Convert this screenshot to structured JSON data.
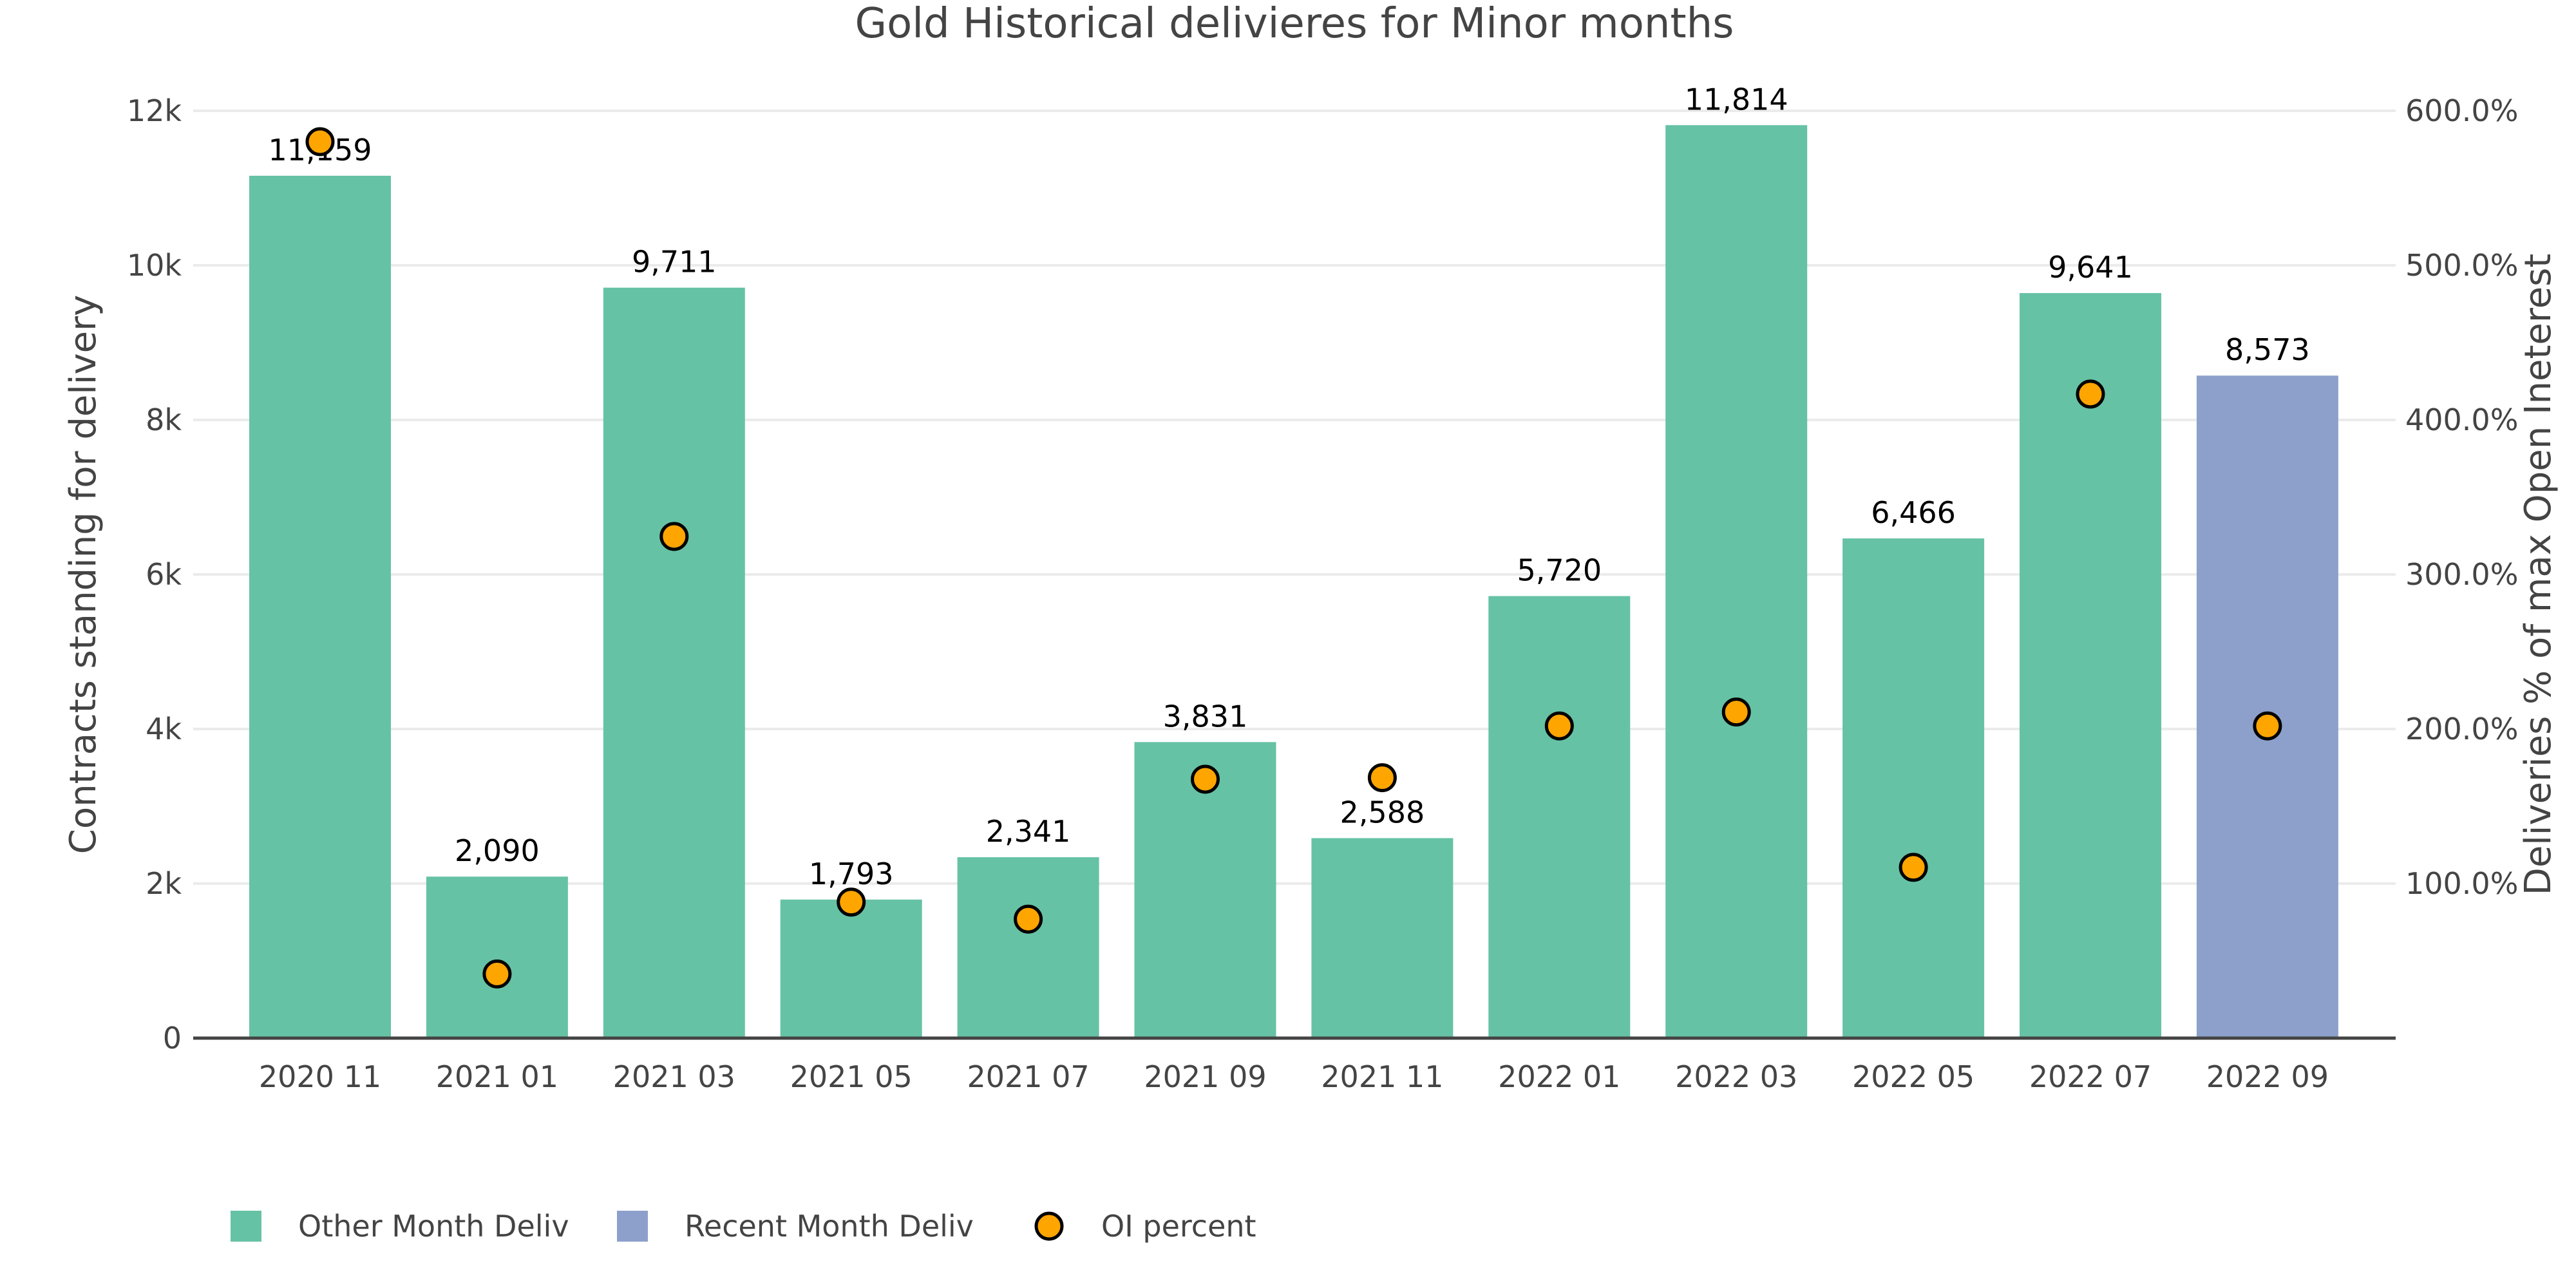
{
  "chart_data": {
    "type": "bar",
    "title": "Gold Historical delivieres for Minor months",
    "xlabel": "",
    "ylabel": "Contracts standing for delivery",
    "y2label": "Deliveries % of max Open Ineterest",
    "ylim": [
      0,
      12000
    ],
    "y2lim": [
      0,
      600
    ],
    "yticks": [
      0,
      2000,
      4000,
      6000,
      8000,
      10000,
      12000
    ],
    "ytick_labels": [
      "0",
      "2k",
      "4k",
      "6k",
      "8k",
      "10k",
      "12k"
    ],
    "y2ticks": [
      100,
      200,
      300,
      400,
      500,
      600
    ],
    "y2tick_labels": [
      "100.0%",
      "200.0%",
      "300.0%",
      "400.0%",
      "500.0%",
      "600.0%"
    ],
    "grid": true,
    "legend_position": "bottom-left",
    "categories": [
      "2020 11",
      "2021 01",
      "2021 03",
      "2021 05",
      "2021 07",
      "2021 09",
      "2021 11",
      "2022 01",
      "2022 03",
      "2022 05",
      "2022 07",
      "2022 09"
    ],
    "series": [
      {
        "name": "Other Month Deliv",
        "type": "bar",
        "axis": "y",
        "color": "#66c2a5",
        "values": [
          11159,
          2090,
          9711,
          1793,
          2341,
          3831,
          2588,
          5720,
          11814,
          6466,
          9641,
          null
        ],
        "labels": [
          "11,159",
          "2,090",
          "9,711",
          "1,793",
          "2,341",
          "3,831",
          "2,588",
          "5,720",
          "11,814",
          "6,466",
          "9,641",
          null
        ]
      },
      {
        "name": "Recent Month Deliv",
        "type": "bar",
        "axis": "y",
        "color": "#8da0cb",
        "values": [
          null,
          null,
          null,
          null,
          null,
          null,
          null,
          null,
          null,
          null,
          null,
          8573
        ],
        "labels": [
          null,
          null,
          null,
          null,
          null,
          null,
          null,
          null,
          null,
          null,
          null,
          "8,573"
        ]
      },
      {
        "name": "OI percent",
        "type": "scatter",
        "axis": "y2",
        "color": "#ffa500",
        "values": [
          580,
          41.5,
          324.6,
          88,
          77,
          167.5,
          168.5,
          202,
          211,
          110.5,
          416.7,
          202
        ]
      }
    ]
  }
}
